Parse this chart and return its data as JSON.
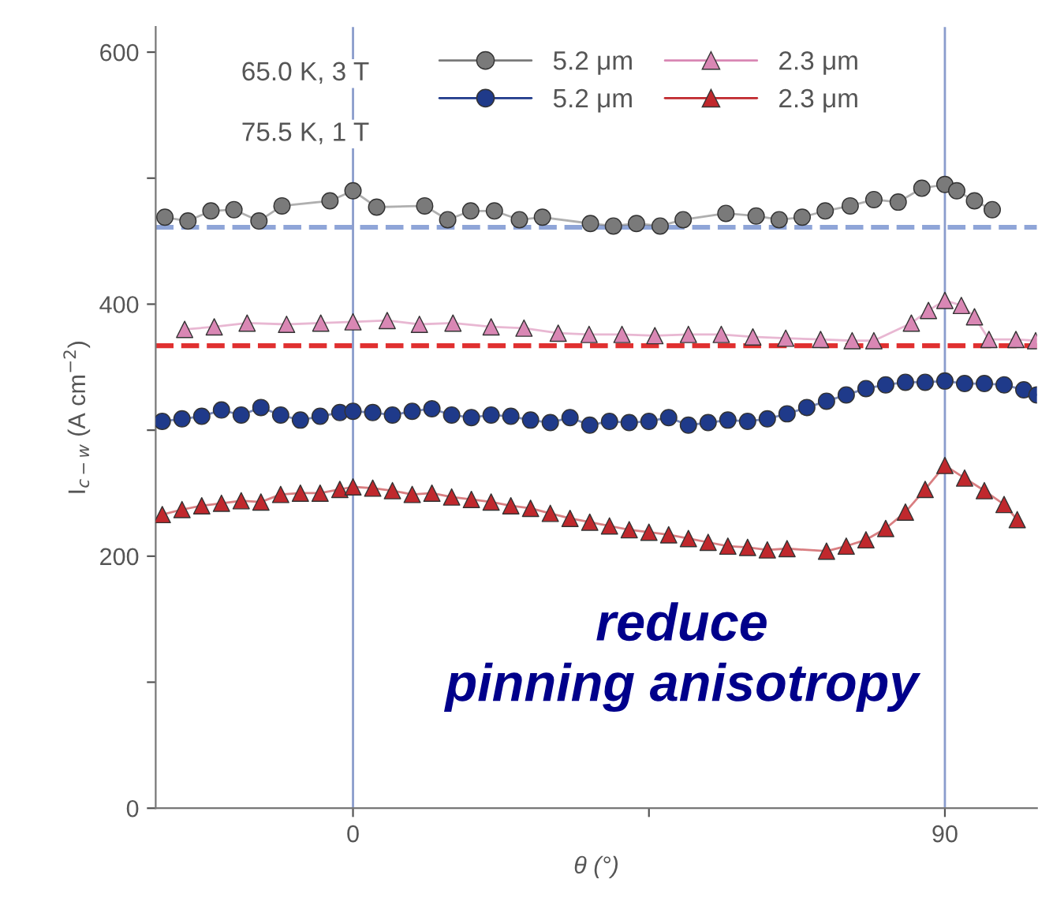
{
  "chart_data": {
    "type": "line",
    "xlabel": "θ (°)",
    "ylabel": "I$_{c−w}$ (A cm$^{−2}$)",
    "xlim": [
      -30,
      104
    ],
    "ylim": [
      0,
      620
    ],
    "xticks": [
      0,
      {
        "value": 45,
        "label": null
      },
      90
    ],
    "yticks": [
      0,
      {
        "value": 100,
        "label": null
      },
      200,
      {
        "value": 300,
        "label": null
      },
      400,
      {
        "value": 500,
        "label": null
      },
      600
    ],
    "grid": false,
    "legend": "top",
    "line_style": "solid",
    "series": [
      {
        "name": "5.2 μm",
        "color": "#7a7a7a",
        "marker": "circle",
        "x": [
          -28.6,
          -25.1,
          -21.6,
          -18.1,
          -14.3,
          -10.8,
          -3.5,
          0,
          3.6,
          10.9,
          14.4,
          17.9,
          21.5,
          25.3,
          28.8,
          36.1,
          39.6,
          43.1,
          46.7,
          50.2,
          56.7,
          61.3,
          64.8,
          68.3,
          71.8,
          75.6,
          79.2,
          82.9,
          86.5,
          90,
          91.8,
          94.5,
          97.2
        ],
        "values": [
          469,
          466,
          474,
          475,
          466,
          478,
          482,
          490,
          477,
          478,
          467,
          474,
          474,
          467,
          469,
          464,
          462,
          464,
          462,
          467,
          472,
          470,
          467,
          469,
          474,
          478,
          483,
          481,
          492,
          495,
          490,
          482,
          475
        ]
      },
      {
        "name": "2.3 μm",
        "color": "#d987b4",
        "marker": "triangle",
        "x": [
          -25.6,
          -21.1,
          -16.1,
          -10.1,
          -4.9,
          0,
          5.2,
          10.1,
          15.2,
          21,
          26,
          31.2,
          35.9,
          40.9,
          45.9,
          51,
          56,
          60.8,
          65.8,
          71.1,
          75.9,
          79.2,
          84.9,
          87.5,
          90,
          92.5,
          94.5,
          96.7,
          100.8,
          103.8
        ],
        "values": [
          380,
          382,
          385,
          384,
          385,
          386,
          387,
          384,
          385,
          382,
          381,
          377,
          376,
          376,
          375,
          376,
          376,
          374,
          373,
          372,
          371,
          371,
          385,
          395,
          403,
          399,
          390,
          372,
          372,
          371
        ]
      },
      {
        "name": "5.2 μm",
        "color": "#1f3a8a",
        "marker": "circle",
        "x": [
          -29,
          -26,
          -23,
          -20,
          -17,
          -14,
          -11,
          -8,
          -5,
          -2,
          0,
          3,
          6,
          9,
          12,
          15,
          18,
          21,
          24,
          27,
          30,
          33,
          36,
          39,
          42,
          45,
          48,
          51,
          54,
          57,
          60,
          63,
          66,
          69,
          72,
          75,
          78,
          81,
          84,
          87,
          90,
          93,
          96,
          99,
          102,
          104
        ],
        "values": [
          307,
          309,
          311,
          316,
          312,
          318,
          312,
          308,
          311,
          314,
          315,
          314,
          312,
          315,
          317,
          312,
          310,
          312,
          311,
          308,
          306,
          310,
          304,
          307,
          306,
          307,
          310,
          304,
          306,
          308,
          307,
          309,
          313,
          318,
          323,
          328,
          333,
          336,
          338,
          338,
          339,
          337,
          337,
          336,
          332,
          328
        ]
      },
      {
        "name": "2.3 μm",
        "color": "#c0282d",
        "marker": "triangle",
        "x": [
          -29,
          -26,
          -23,
          -20,
          -17,
          -14,
          -11,
          -8,
          -5,
          -2,
          0,
          3,
          6,
          9,
          12,
          15,
          18,
          21,
          24,
          27,
          30,
          33,
          36,
          39,
          42,
          45,
          48,
          51,
          54,
          57,
          60,
          63,
          66,
          72,
          75,
          78,
          81,
          84,
          87,
          90,
          93,
          96,
          99,
          101
        ],
        "values": [
          233,
          237,
          240,
          242,
          244,
          243,
          249,
          250,
          250,
          253,
          255,
          254,
          252,
          249,
          250,
          247,
          245,
          243,
          240,
          238,
          234,
          230,
          227,
          224,
          221,
          219,
          217,
          214,
          211,
          208,
          207,
          205,
          206,
          204,
          208,
          213,
          222,
          235,
          253,
          272,
          262,
          252,
          241,
          229
        ]
      }
    ],
    "ref_lines": [
      {
        "axis": "y",
        "value": 461,
        "label": null,
        "color": "#8fa5d8",
        "line_style": "dashed"
      },
      {
        "axis": "y",
        "value": 367,
        "label": null,
        "color": "#e03030",
        "line_style": "dashed"
      },
      {
        "axis": "x",
        "value": 0,
        "label": null,
        "color": "#8a9ccc",
        "line_style": "solid"
      },
      {
        "axis": "x",
        "value": 90,
        "label": null,
        "color": "#8a9ccc",
        "line_style": "solid"
      }
    ],
    "annotations": [
      "65.0 K, 3 T",
      "75.5 K, 1 T",
      "reduce\npinning anisotropy"
    ]
  }
}
